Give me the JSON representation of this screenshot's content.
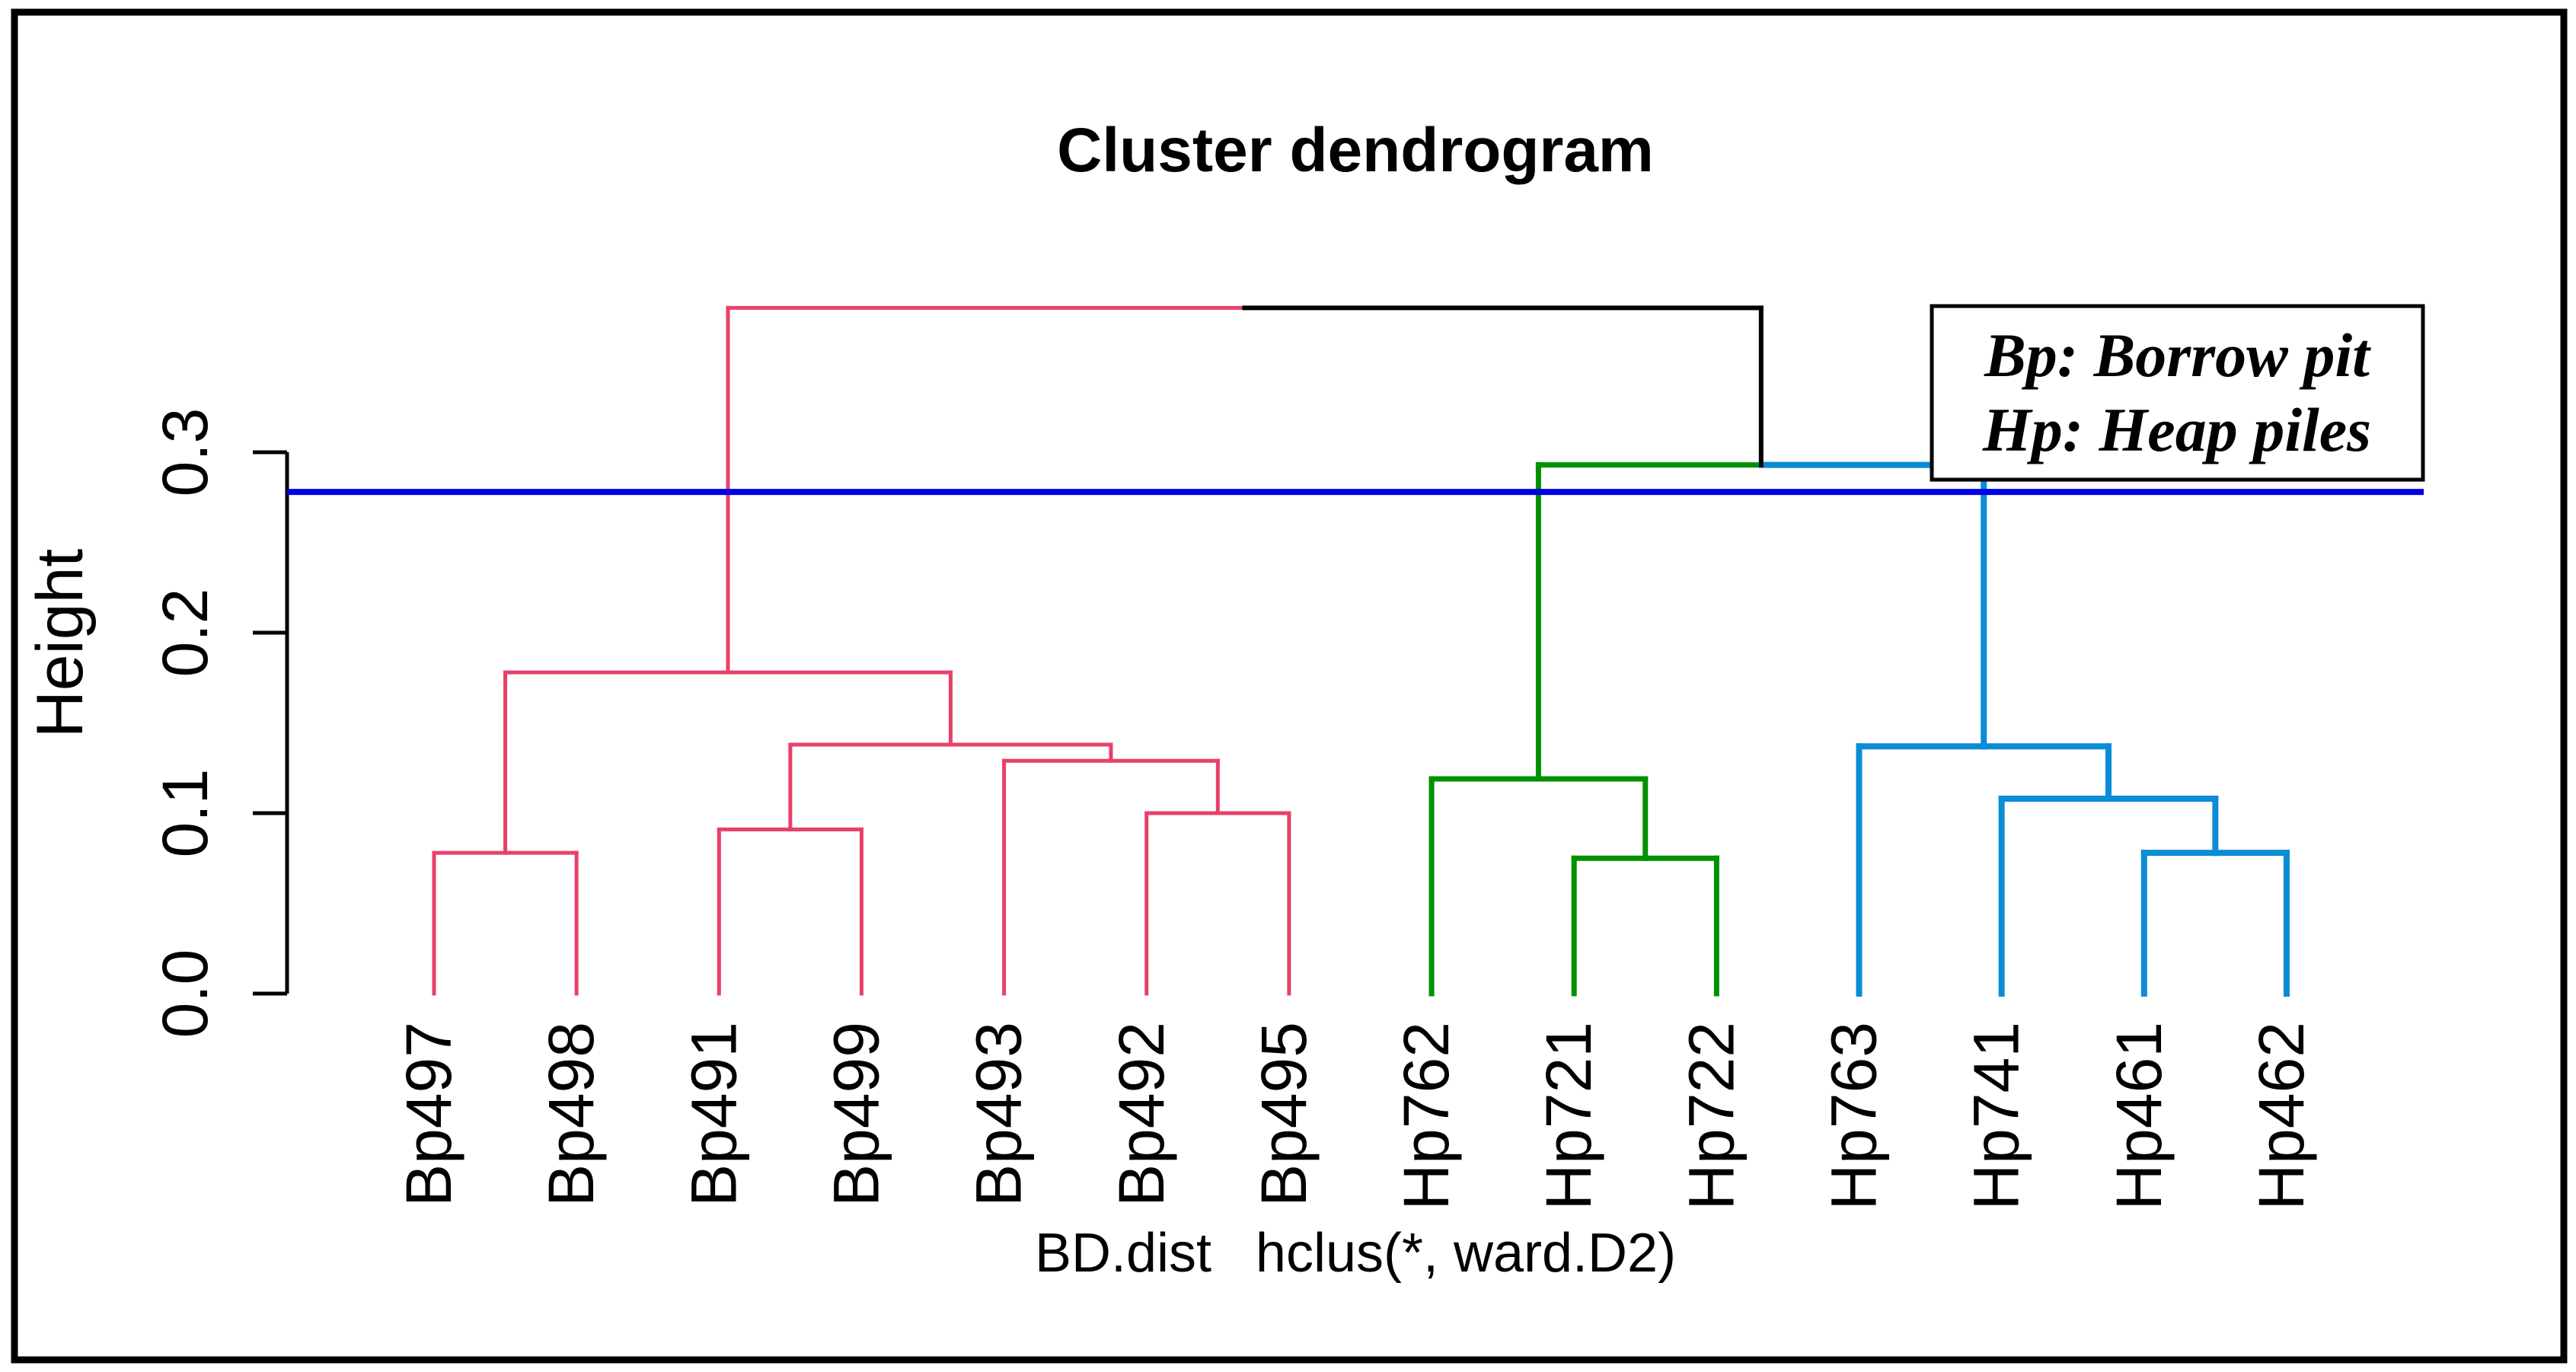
{
  "title": "Cluster dendrogram",
  "caption": {
    "part1": "BD.dist",
    "part2": "hclus(*, ward.D2)"
  },
  "legend": {
    "line1": "Bp: Borrow pit",
    "line2": "Hp: Heap piles"
  },
  "y_axis": {
    "label": "Height",
    "ticks": [
      {
        "label": "0.0",
        "value": 0.0
      },
      {
        "label": "0.1",
        "value": 0.1
      },
      {
        "label": "0.2",
        "value": 0.2
      },
      {
        "label": "0.3",
        "value": 0.3
      }
    ]
  },
  "colors": {
    "pink": "#e84069",
    "green": "#009100",
    "light_blue": "#0a8cd6",
    "dark_blue": "#0000e6",
    "black": "#000000"
  },
  "chart_data": {
    "type": "dendrogram",
    "title": "Cluster dendrogram",
    "ylabel": "Height",
    "ylim": [
      0.0,
      0.3
    ],
    "grid": false,
    "threshold_line": {
      "height": 0.278,
      "color": "dark_blue"
    },
    "leaves": [
      {
        "id": "L0",
        "label": "Bp497",
        "cluster": "pink"
      },
      {
        "id": "L1",
        "label": "Bp498",
        "cluster": "pink"
      },
      {
        "id": "L2",
        "label": "Bp491",
        "cluster": "pink"
      },
      {
        "id": "L3",
        "label": "Bp499",
        "cluster": "pink"
      },
      {
        "id": "L4",
        "label": "Bp493",
        "cluster": "pink"
      },
      {
        "id": "L5",
        "label": "Bp492",
        "cluster": "pink"
      },
      {
        "id": "L6",
        "label": "Bp495",
        "cluster": "pink"
      },
      {
        "id": "L7",
        "label": "Hp762",
        "cluster": "green"
      },
      {
        "id": "L8",
        "label": "Hp721",
        "cluster": "green"
      },
      {
        "id": "L9",
        "label": "Hp722",
        "cluster": "green"
      },
      {
        "id": "L10",
        "label": "Hp763",
        "cluster": "light_blue"
      },
      {
        "id": "L11",
        "label": "Hp741",
        "cluster": "light_blue"
      },
      {
        "id": "L12",
        "label": "Hp461",
        "cluster": "light_blue"
      },
      {
        "id": "L13",
        "label": "Hp462",
        "cluster": "light_blue"
      }
    ],
    "merges": [
      {
        "id": "m1",
        "left": "L0",
        "right": "L1",
        "height": 0.078,
        "cluster": "pink"
      },
      {
        "id": "m2",
        "left": "L2",
        "right": "L3",
        "height": 0.091,
        "cluster": "pink"
      },
      {
        "id": "m3",
        "left": "L5",
        "right": "L6",
        "height": 0.1,
        "cluster": "pink"
      },
      {
        "id": "m4",
        "left": "L4",
        "right": "m3",
        "height": 0.129,
        "cluster": "pink"
      },
      {
        "id": "m5",
        "left": "m2",
        "right": "m4",
        "height": 0.138,
        "cluster": "pink"
      },
      {
        "id": "m6",
        "left": "m1",
        "right": "m5",
        "height": 0.178,
        "cluster": "pink"
      },
      {
        "id": "m7",
        "left": "L8",
        "right": "L9",
        "height": 0.075,
        "cluster": "green"
      },
      {
        "id": "m8",
        "left": "L7",
        "right": "m7",
        "height": 0.119,
        "cluster": "green"
      },
      {
        "id": "m9",
        "left": "L12",
        "right": "L13",
        "height": 0.078,
        "cluster": "light_blue"
      },
      {
        "id": "m10",
        "left": "L11",
        "right": "m9",
        "height": 0.108,
        "cluster": "light_blue"
      },
      {
        "id": "m11",
        "left": "L10",
        "right": "m10",
        "height": 0.137,
        "cluster": "light_blue"
      },
      {
        "id": "m12",
        "left": "m8",
        "right": "m11",
        "height": 0.293,
        "cluster": "black"
      },
      {
        "id": "m13",
        "left": "m6",
        "right": "m12",
        "height": 0.38,
        "cluster": "black"
      }
    ]
  }
}
